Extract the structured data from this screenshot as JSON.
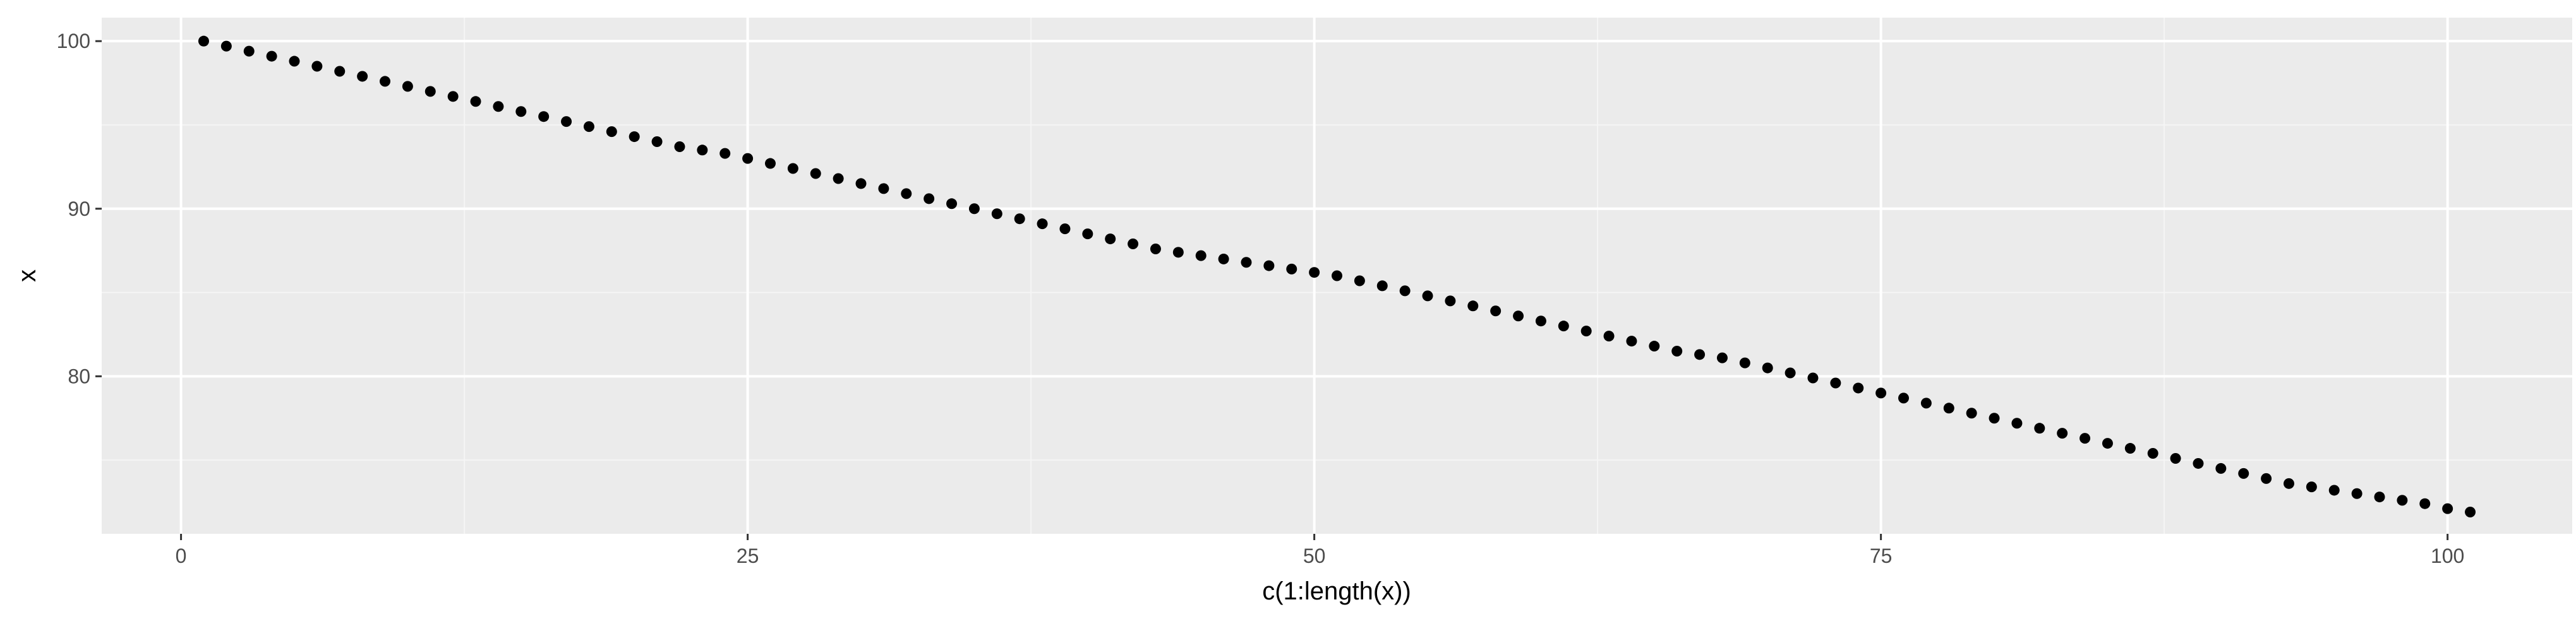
{
  "chart_data": {
    "type": "scatter",
    "title": "",
    "xlabel": "c(1:length(x))",
    "ylabel": "x",
    "xlim": [
      -3.5,
      105.5
    ],
    "ylim": [
      70.6,
      101.4
    ],
    "x_ticks": [
      0,
      25,
      50,
      75,
      100
    ],
    "x_tick_labels": [
      "0",
      "25",
      "50",
      "75",
      "100"
    ],
    "y_ticks": [
      80,
      90,
      100
    ],
    "y_tick_labels": [
      "80",
      "90",
      "100"
    ],
    "x_minor_ticks": [
      12.5,
      37.5,
      62.5,
      87.5
    ],
    "y_minor_ticks": [
      75,
      85,
      95
    ],
    "grid": true,
    "colors": {
      "panel_background": "#ebebeb",
      "grid_major": "#ffffff",
      "grid_minor": "#f5f5f5",
      "point": "#000000",
      "tick_label": "#4d4d4d"
    },
    "series": [
      {
        "x": [
          1,
          2,
          3,
          4,
          5,
          6,
          7,
          8,
          9,
          10,
          11,
          12,
          13,
          14,
          15,
          16,
          17,
          18,
          19,
          20,
          21,
          22,
          23,
          24,
          25,
          26,
          27,
          28,
          29,
          30,
          31,
          32,
          33,
          34,
          35,
          36,
          37,
          38,
          39,
          40,
          41,
          42,
          43,
          44,
          45,
          46,
          47,
          48,
          49,
          50,
          51,
          52,
          53,
          54,
          55,
          56,
          57,
          58,
          59,
          60,
          61,
          62,
          63,
          64,
          65,
          66,
          67,
          68,
          69,
          70,
          71,
          72,
          73,
          74,
          75,
          76,
          77,
          78,
          79,
          80,
          81,
          82,
          83,
          84,
          85,
          86,
          87,
          88,
          89,
          90,
          91,
          92,
          93,
          94,
          95,
          96,
          97,
          98,
          99,
          100,
          101
        ],
        "y": [
          100.0,
          99.7,
          99.4,
          99.1,
          98.8,
          98.5,
          98.2,
          97.9,
          97.6,
          97.3,
          97.0,
          96.7,
          96.4,
          96.1,
          95.8,
          95.5,
          95.2,
          94.9,
          94.6,
          94.3,
          94.0,
          93.7,
          93.5,
          93.3,
          93.0,
          92.7,
          92.4,
          92.1,
          91.8,
          91.5,
          91.2,
          90.9,
          90.6,
          90.3,
          90.0,
          89.7,
          89.4,
          89.1,
          88.8,
          88.5,
          88.2,
          87.9,
          87.6,
          87.4,
          87.2,
          87.0,
          86.8,
          86.6,
          86.4,
          86.2,
          86.0,
          85.7,
          85.4,
          85.1,
          84.8,
          84.5,
          84.2,
          83.9,
          83.6,
          83.3,
          83.0,
          82.7,
          82.4,
          82.1,
          81.8,
          81.5,
          81.3,
          81.1,
          80.8,
          80.5,
          80.2,
          79.9,
          79.6,
          79.3,
          79.0,
          78.7,
          78.4,
          78.1,
          77.8,
          77.5,
          77.2,
          76.9,
          76.6,
          76.3,
          76.0,
          75.7,
          75.4,
          75.1,
          74.8,
          74.5,
          74.2,
          73.9,
          73.6,
          73.4,
          73.2,
          73.0,
          72.8,
          72.6,
          72.4,
          72.1,
          71.9
        ]
      }
    ]
  }
}
